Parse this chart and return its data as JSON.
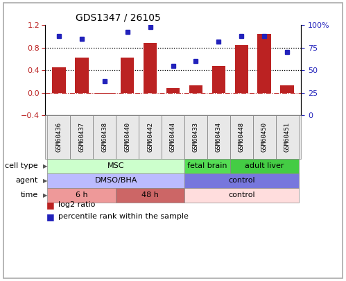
{
  "title": "GDS1347 / 26105",
  "samples": [
    "GSM60436",
    "GSM60437",
    "GSM60438",
    "GSM60440",
    "GSM60442",
    "GSM60444",
    "GSM60433",
    "GSM60434",
    "GSM60448",
    "GSM60450",
    "GSM60451"
  ],
  "log2_ratio": [
    0.45,
    0.62,
    -0.02,
    0.62,
    0.88,
    0.08,
    0.13,
    0.48,
    0.85,
    1.05,
    0.13
  ],
  "percentile_rank": [
    88,
    85,
    38,
    93,
    98,
    55,
    60,
    82,
    88,
    88,
    70
  ],
  "bar_color": "#bb2222",
  "dot_color": "#2222bb",
  "ylim_left": [
    -0.4,
    1.2
  ],
  "ylim_right": [
    0,
    100
  ],
  "yticks_left": [
    -0.4,
    0.0,
    0.4,
    0.8,
    1.2
  ],
  "yticks_right": [
    0,
    25,
    50,
    75,
    100
  ],
  "ytick_labels_right": [
    "0",
    "25",
    "50",
    "75",
    "100%"
  ],
  "hline_y": [
    0.4,
    0.8
  ],
  "zero_line_y": 0.0,
  "cell_type_labels": [
    {
      "text": "MSC",
      "start": 0,
      "end": 5,
      "color": "#ccffcc"
    },
    {
      "text": "fetal brain",
      "start": 6,
      "end": 7,
      "color": "#55dd55"
    },
    {
      "text": "adult liver",
      "start": 8,
      "end": 10,
      "color": "#44cc44"
    }
  ],
  "agent_labels": [
    {
      "text": "DMSO/BHA",
      "start": 0,
      "end": 5,
      "color": "#bbbbff"
    },
    {
      "text": "control",
      "start": 6,
      "end": 10,
      "color": "#7777dd"
    }
  ],
  "time_labels": [
    {
      "text": "6 h",
      "start": 0,
      "end": 2,
      "color": "#ee9999"
    },
    {
      "text": "48 h",
      "start": 3,
      "end": 5,
      "color": "#cc6666"
    },
    {
      "text": "control",
      "start": 6,
      "end": 10,
      "color": "#ffdddd"
    }
  ],
  "row_labels": [
    "cell type",
    "agent",
    "time"
  ],
  "legend_items": [
    {
      "label": "log2 ratio",
      "color": "#bb2222"
    },
    {
      "label": "percentile rank within the sample",
      "color": "#2222bb"
    }
  ]
}
